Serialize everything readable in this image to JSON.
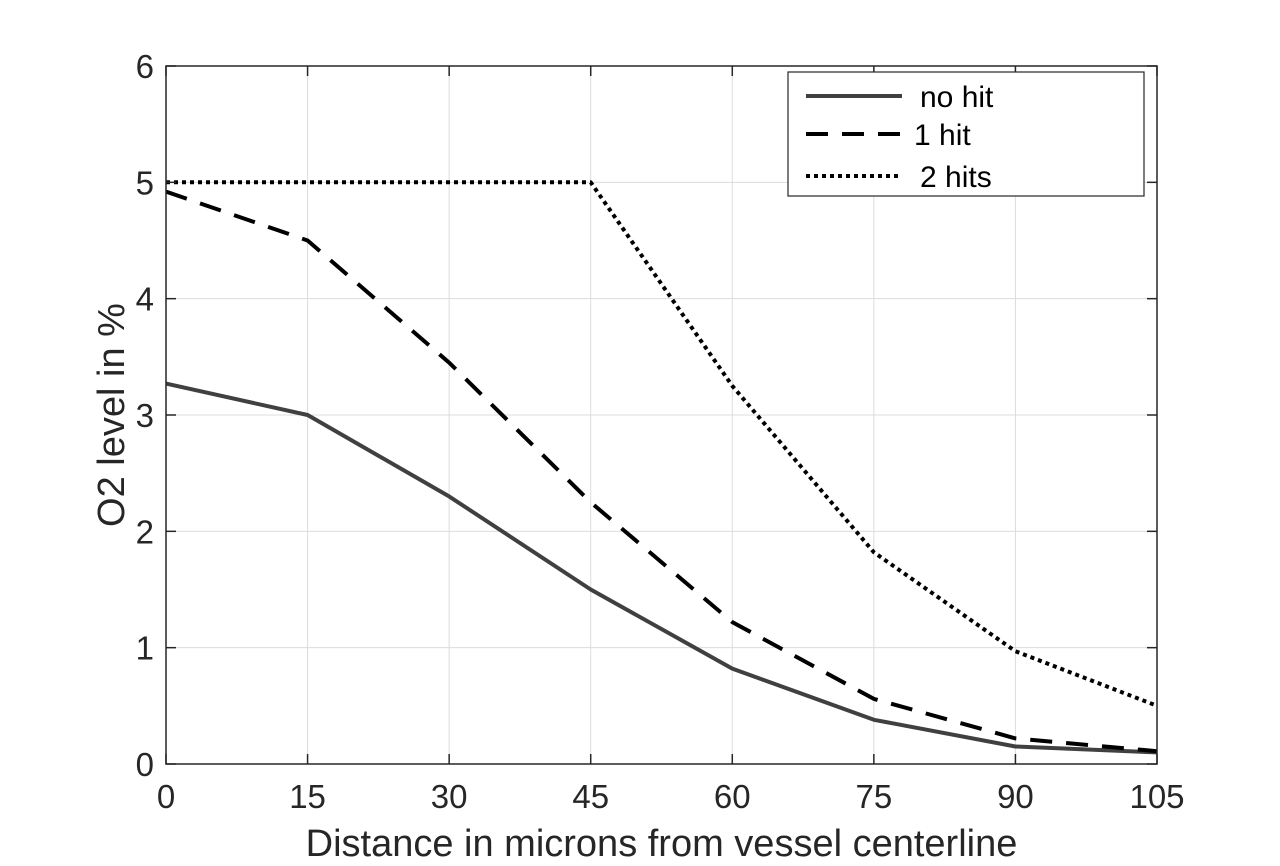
{
  "chart_data": {
    "type": "line",
    "title": "",
    "xlabel": "Distance in microns from vessel centerline",
    "ylabel": "O2 level in %",
    "xlim": [
      0,
      105
    ],
    "ylim": [
      0,
      6
    ],
    "xticks": [
      0,
      15,
      30,
      45,
      60,
      75,
      90,
      105
    ],
    "yticks": [
      0,
      1,
      2,
      3,
      4,
      5,
      6
    ],
    "x": [
      0,
      15,
      30,
      45,
      60,
      75,
      90,
      105
    ],
    "grid": true,
    "legend_position": "top-right",
    "series": [
      {
        "name": "no hit",
        "style": "solid",
        "color": "#404040",
        "values": [
          3.27,
          3.0,
          2.3,
          1.5,
          0.82,
          0.38,
          0.15,
          0.1
        ]
      },
      {
        "name": "1 hit",
        "style": "dashed",
        "color": "#000000",
        "values": [
          4.92,
          4.5,
          3.45,
          2.25,
          1.22,
          0.56,
          0.22,
          0.11
        ]
      },
      {
        "name": "2 hits",
        "style": "dotted",
        "color": "#000000",
        "values": [
          5.0,
          5.0,
          5.0,
          5.0,
          3.25,
          1.82,
          0.97,
          0.5
        ]
      }
    ]
  }
}
